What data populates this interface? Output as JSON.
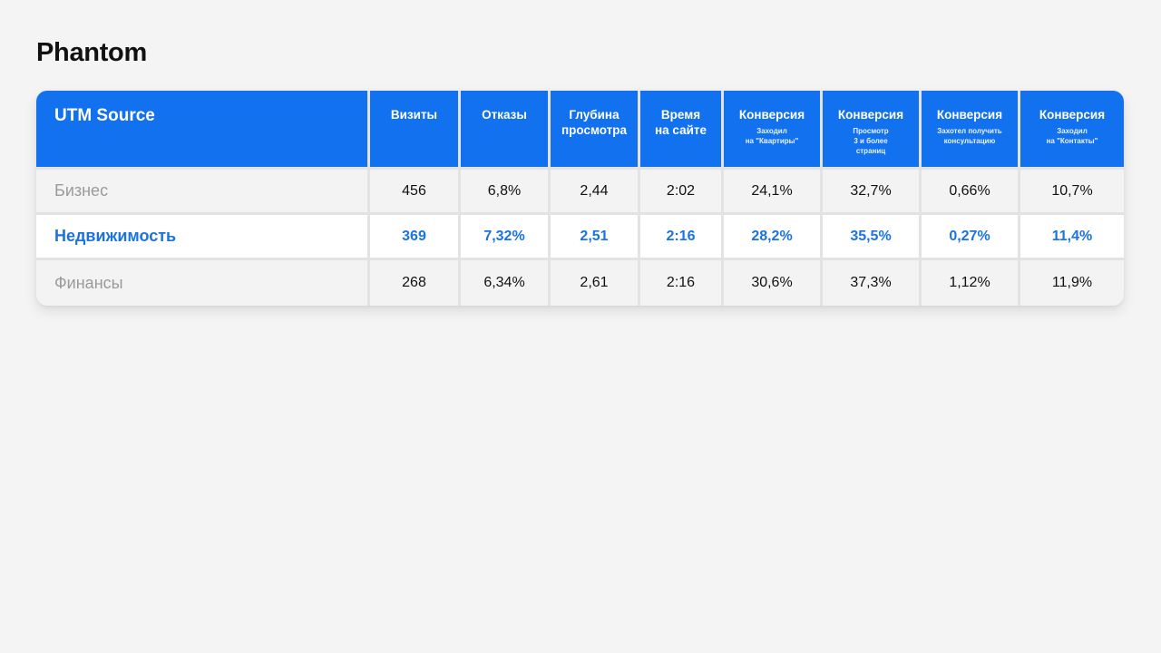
{
  "title": "Phantom",
  "colors": {
    "header_bg": "#1271ee",
    "highlight_text": "#1a73e0",
    "muted_text": "#9a9a9a"
  },
  "table": {
    "first_header": "UTM Source",
    "columns": [
      {
        "main": "Визиты",
        "sub": ""
      },
      {
        "main": "Отказы",
        "sub": ""
      },
      {
        "main": "Глубина\nпросмотра",
        "sub": ""
      },
      {
        "main": "Время\nна сайте",
        "sub": ""
      },
      {
        "main": "Конверсия",
        "sub": "Заходил\nна \"Квартиры\""
      },
      {
        "main": "Конверсия",
        "sub": "Просмотр\n3 и более\nстраниц"
      },
      {
        "main": "Конверсия",
        "sub": "Захотел получить\nконсультацию"
      },
      {
        "main": "Конверсия",
        "sub": "Заходил\nна \"Контакты\""
      }
    ],
    "rows": [
      {
        "source": "Бизнес",
        "highlight": false,
        "values": [
          "456",
          "6,8%",
          "2,44",
          "2:02",
          "24,1%",
          "32,7%",
          "0,66%",
          "10,7%"
        ]
      },
      {
        "source": "Недвижимость",
        "highlight": true,
        "values": [
          "369",
          "7,32%",
          "2,51",
          "2:16",
          "28,2%",
          "35,5%",
          "0,27%",
          "11,4%"
        ]
      },
      {
        "source": "Финансы",
        "highlight": false,
        "values": [
          "268",
          "6,34%",
          "2,61",
          "2:16",
          "30,6%",
          "37,3%",
          "1,12%",
          "11,9%"
        ]
      }
    ]
  }
}
